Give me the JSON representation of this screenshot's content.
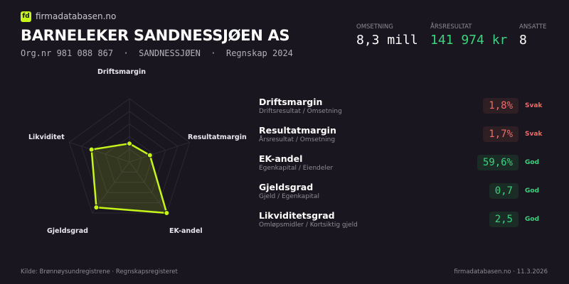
{
  "header": {
    "brand": "firmadatabasen.no",
    "logo_text": "fd",
    "company": "BARNELEKER SANDNESSJØEN AS",
    "subtitle": "Org.nr 981 088 867  ·  SANDNESSJØEN  ·  Regnskap 2024"
  },
  "stats": [
    {
      "label": "OMSETNING",
      "value": "8,3 mill",
      "color": "#ffffff"
    },
    {
      "label": "ÅRSRESULTAT",
      "value": "141 974 kr",
      "color": "#3ed27d"
    },
    {
      "label": "ANSATTE",
      "value": "8",
      "color": "#ffffff"
    }
  ],
  "chart_data": {
    "type": "radar",
    "axes": [
      "Driftsmargin",
      "Resultatmargin",
      "EK-andel",
      "Gjeldsgrad",
      "Likviditet"
    ],
    "values": [
      0.29,
      0.34,
      1.0,
      0.89,
      0.63
    ],
    "range": [
      0,
      1
    ],
    "grid_levels": 5,
    "color": "#c6f51a"
  },
  "ratios": [
    {
      "name": "Driftsmargin",
      "desc": "Driftsresultat / Omsetning",
      "value": "1,8%",
      "verdict": "Svak",
      "status": "bad"
    },
    {
      "name": "Resultatmargin",
      "desc": "Årsresultat / Omsetning",
      "value": "1,7%",
      "verdict": "Svak",
      "status": "bad"
    },
    {
      "name": "EK-andel",
      "desc": "Egenkapital / Eiendeler",
      "value": "59,6%",
      "verdict": "God",
      "status": "good"
    },
    {
      "name": "Gjeldsgrad",
      "desc": "Gjeld / Egenkapital",
      "value": "0,7",
      "verdict": "God",
      "status": "good"
    },
    {
      "name": "Likviditetsgrad",
      "desc": "Omløpsmidler / Kortsiktig gjeld",
      "value": "2,5",
      "verdict": "God",
      "status": "good"
    }
  ],
  "footer": {
    "source": "Kilde: Brønnøysundregistrene · Regnskapsregisteret",
    "site": "firmadatabasen.no · 11.3.2026"
  }
}
